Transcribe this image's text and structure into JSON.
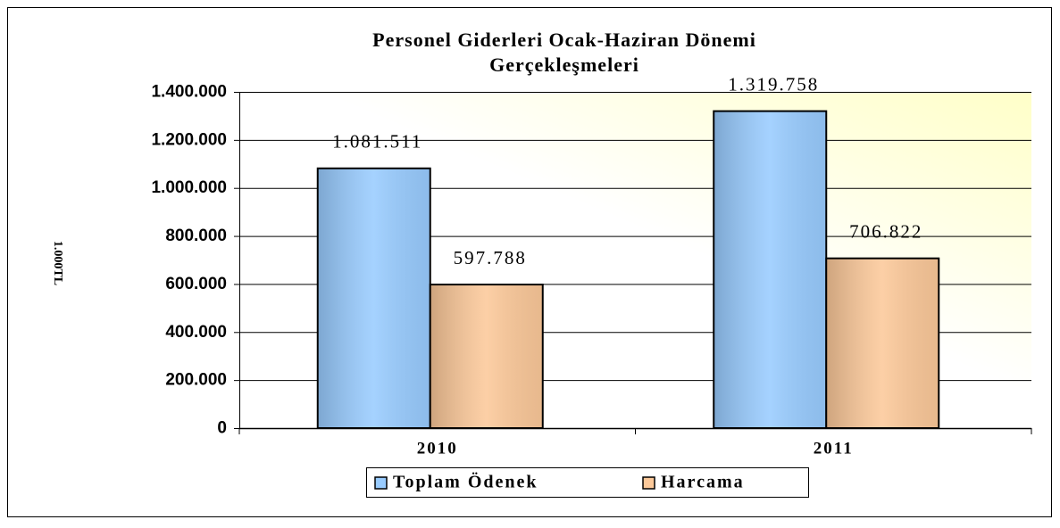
{
  "chart_data": {
    "type": "bar",
    "title": [
      "Personel Giderleri Ocak-Haziran Dönemi",
      "Gerçekleşmeleri"
    ],
    "ylabel": "1.000TL",
    "categories": [
      "2010",
      "2011"
    ],
    "series": [
      {
        "name": "Toplam Ödenek",
        "color": "#99ccff",
        "values": [
          1081511,
          1319758
        ],
        "value_labels": [
          "1.081.511",
          "1.319.758"
        ]
      },
      {
        "name": "Harcama",
        "color": "#fcc99a",
        "values": [
          597788,
          706822
        ],
        "value_labels": [
          "597.788",
          "706.822"
        ]
      }
    ],
    "ylim": [
      0,
      1400000
    ],
    "yticks": [
      0,
      {
        "value": 200000,
        "label": "200.000"
      },
      {
        "value": 400000,
        "label": "400.000"
      },
      {
        "value": 600000,
        "label": "600.000"
      },
      {
        "value": 800000,
        "label": "800.000"
      },
      {
        "value": 1000000,
        "label": "1.000.000"
      },
      {
        "value": 1200000,
        "label": "1.200.000"
      },
      {
        "value": 1400000,
        "label": "1.400.000"
      }
    ],
    "grid": true,
    "legend": "bottom"
  }
}
